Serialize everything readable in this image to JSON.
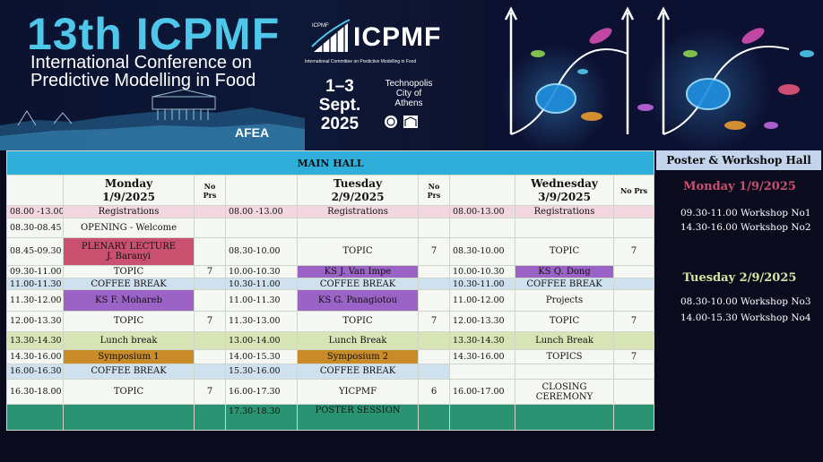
{
  "banner": {
    "title": "13th ICPMF",
    "subtitle_line1": "International Conference on",
    "subtitle_line2": "Predictive Modelling in Food",
    "afea": "AFEA",
    "logo_text": "ICPMF",
    "logo_mark_text": "ICPMF",
    "logo_caption": "International Committee on Predictive Modelling in Food",
    "dates_line1": "1–3",
    "dates_line2": "Sept.",
    "dates_line3": "2025",
    "venue_line1": "Technopolis",
    "venue_line2": "City of",
    "venue_line3": "Athens"
  },
  "colors": {
    "accent_blue": "#2eaed9",
    "plenary": "#c9506f",
    "keynote": "#9a63c5",
    "symposium": "#c98a28",
    "poster": "#2a9472"
  },
  "schedule": {
    "main_hall": "MAIN HALL",
    "days": [
      {
        "name": "Monday",
        "date": "1/9/2025"
      },
      {
        "name": "Tuesday",
        "date": "2/9/2025"
      },
      {
        "name": "Wednesday",
        "date": "3/9/2025"
      }
    ],
    "noprs_label": "No Prs",
    "rows": [
      [
        {
          "t": "08.00 -13.00",
          "e": "Registrations",
          "n": ""
        },
        {
          "t": "08.00 -13.00",
          "e": "Registrations",
          "n": ""
        },
        {
          "t": "08.00-13.00",
          "e": "Registrations",
          "n": ""
        }
      ],
      [
        {
          "t": "08.30-08.45",
          "e": "OPENING - Welcome",
          "n": ""
        },
        {
          "t": "",
          "e": "",
          "n": ""
        },
        {
          "t": "",
          "e": "",
          "n": ""
        }
      ],
      [
        {
          "t": "08.45-09.30",
          "e1": "PLENARY LECTURE",
          "e2": "J. Baranyi",
          "n": ""
        },
        {
          "t": "08.30-10.00",
          "e": "TOPIC",
          "n": "7"
        },
        {
          "t": "08.30-10.00",
          "e": "TOPIC",
          "n": "7"
        }
      ],
      [
        {
          "t": "09.30-11.00",
          "e": "TOPIC",
          "n": "7"
        },
        {
          "t": "10.00-10.30",
          "e": "KS J. Van Impe",
          "n": ""
        },
        {
          "t": "10.00-10.30",
          "e": "KS Q. Dong",
          "n": ""
        }
      ],
      [
        {
          "t": "11.00-11.30",
          "e": "COFFEE BREAK",
          "n": ""
        },
        {
          "t": "10.30-11.00",
          "e": "COFFEE BREAK",
          "n": ""
        },
        {
          "t": "10.30-11.00",
          "e": "COFFEE BREAK",
          "n": ""
        }
      ],
      [
        {
          "t": "11.30-12.00",
          "e": "KS F. Mohareb",
          "n": ""
        },
        {
          "t": "11.00-11.30",
          "e": "KS G. Panagiotou",
          "n": ""
        },
        {
          "t": "11.00-12.00",
          "e": "Projects",
          "n": ""
        }
      ],
      [
        {
          "t": "12.00-13.30",
          "e": "TOPIC",
          "n": "7"
        },
        {
          "t": "11.30-13.00",
          "e": "TOPIC",
          "n": "7"
        },
        {
          "t": "12.00-13.30",
          "e": "TOPIC",
          "n": "7"
        }
      ],
      [
        {
          "t": "13.30-14.30",
          "e": "Lunch break",
          "n": ""
        },
        {
          "t": "13.00-14.00",
          "e": "Lunch Break",
          "n": ""
        },
        {
          "t": "13.30-14.30",
          "e": "Lunch Break",
          "n": ""
        }
      ],
      [
        {
          "t": "14.30-16.00",
          "e": "Symposium 1",
          "n": ""
        },
        {
          "t": "14.00-15.30",
          "e": "Symposium 2",
          "n": ""
        },
        {
          "t": "14.30-16.00",
          "e": "TOPICS",
          "n": "7"
        }
      ],
      [
        {
          "t": "16.00-16.30",
          "e": "COFFEE BREAK",
          "n": ""
        },
        {
          "t": "15.30-16.00",
          "e": "COFFEE BREAK",
          "n": ""
        },
        {
          "t": "",
          "e": "",
          "n": ""
        }
      ],
      [
        {
          "t": "16.30-18.00",
          "e": "TOPIC",
          "n": "7"
        },
        {
          "t": "16.00-17.30",
          "e": "YICPMF",
          "n": "6"
        },
        {
          "t": "16.00-17.00",
          "e1": "CLOSING",
          "e2": "CEREMONY",
          "n": ""
        }
      ],
      [
        {
          "t": "",
          "e": "",
          "n": ""
        },
        {
          "t": "17.30-18.30",
          "e": "POSTER SESSION",
          "n": ""
        },
        {
          "t": "",
          "e": "",
          "n": ""
        }
      ]
    ]
  },
  "side": {
    "title": "Poster & Workshop Hall",
    "day1": "Monday 1/9/2025",
    "day1_items": [
      {
        "time": "09.30-11.00",
        "label": "Workshop No1"
      },
      {
        "time": "14.30-16.00",
        "label": "Workshop No2"
      }
    ],
    "day2": "Tuesday 2/9/2025",
    "day2_items": [
      {
        "time": "08.30-10.00",
        "label": "Workshop No3"
      },
      {
        "time": "14.00-15.30",
        "label": "Workshop No4"
      }
    ]
  }
}
